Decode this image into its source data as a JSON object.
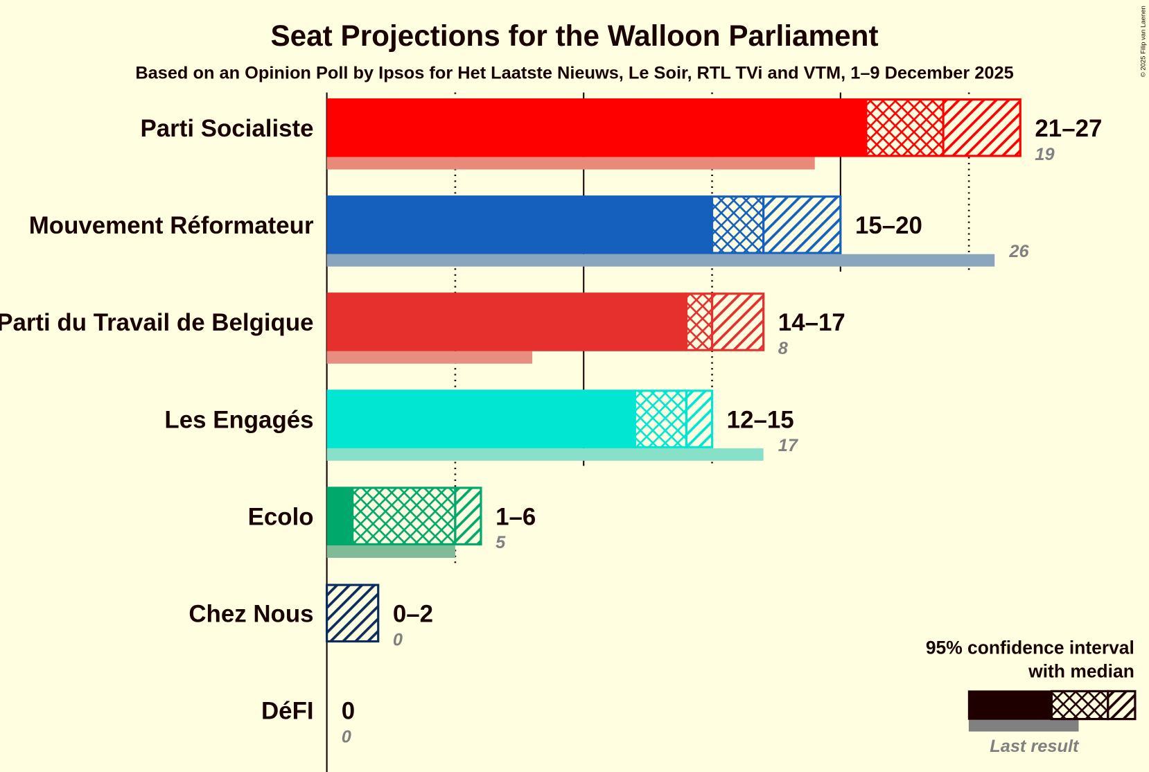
{
  "chart_data": {
    "type": "bar",
    "title": "Seat Projections for the Walloon Parliament",
    "subtitle": "Based on an Opinion Poll by Ipsos for Het Laatste Nieuws, Le Soir, RTL TVi and VTM, 1–9 December 2025",
    "copyright": "© 2025 Filip van Laenen",
    "xlim": [
      0,
      30
    ],
    "gridlines_solid": [
      0,
      10,
      20
    ],
    "gridlines_dotted": [
      5,
      15,
      25
    ],
    "parties": [
      {
        "name": "Parti Socialiste",
        "lower": 21,
        "median": 24,
        "upper": 27,
        "label": "21–27",
        "last": 19,
        "last_label": "19",
        "color": "#FF0000",
        "last_color": "#E8897A"
      },
      {
        "name": "Mouvement Réformateur",
        "lower": 15,
        "median": 17,
        "upper": 20,
        "label": "15–20",
        "last": 26,
        "last_label": "26",
        "color": "#1560BD",
        "last_color": "#8AA5BE"
      },
      {
        "name": "Parti du Travail de Belgique",
        "lower": 14,
        "median": 15,
        "upper": 17,
        "label": "14–17",
        "last": 8,
        "last_label": "8",
        "color": "#E5302D",
        "last_color": "#E88E80"
      },
      {
        "name": "Les Engagés",
        "lower": 12,
        "median": 14,
        "upper": 15,
        "label": "12–15",
        "last": 17,
        "last_label": "17",
        "color": "#00E6D2",
        "last_color": "#88E0C8"
      },
      {
        "name": "Ecolo",
        "lower": 1,
        "median": 5,
        "upper": 6,
        "label": "1–6",
        "last": 5,
        "last_label": "5",
        "color": "#00A86B",
        "last_color": "#80BB98"
      },
      {
        "name": "Chez Nous",
        "lower": 0,
        "median": 0,
        "upper": 2,
        "label": "0–2",
        "last": 0,
        "last_label": "0",
        "color": "#0B2D5B",
        "last_color": "#8896AA"
      },
      {
        "name": "DéFI",
        "lower": 0,
        "median": 0,
        "upper": 0,
        "label": "0",
        "last": 0,
        "last_label": "0",
        "color": "#DD0081",
        "last_color": "#E89AC5"
      }
    ],
    "legend": {
      "line1": "95% confidence interval",
      "line2": "with median",
      "last_result": "Last result",
      "position": "bottom-right"
    }
  }
}
